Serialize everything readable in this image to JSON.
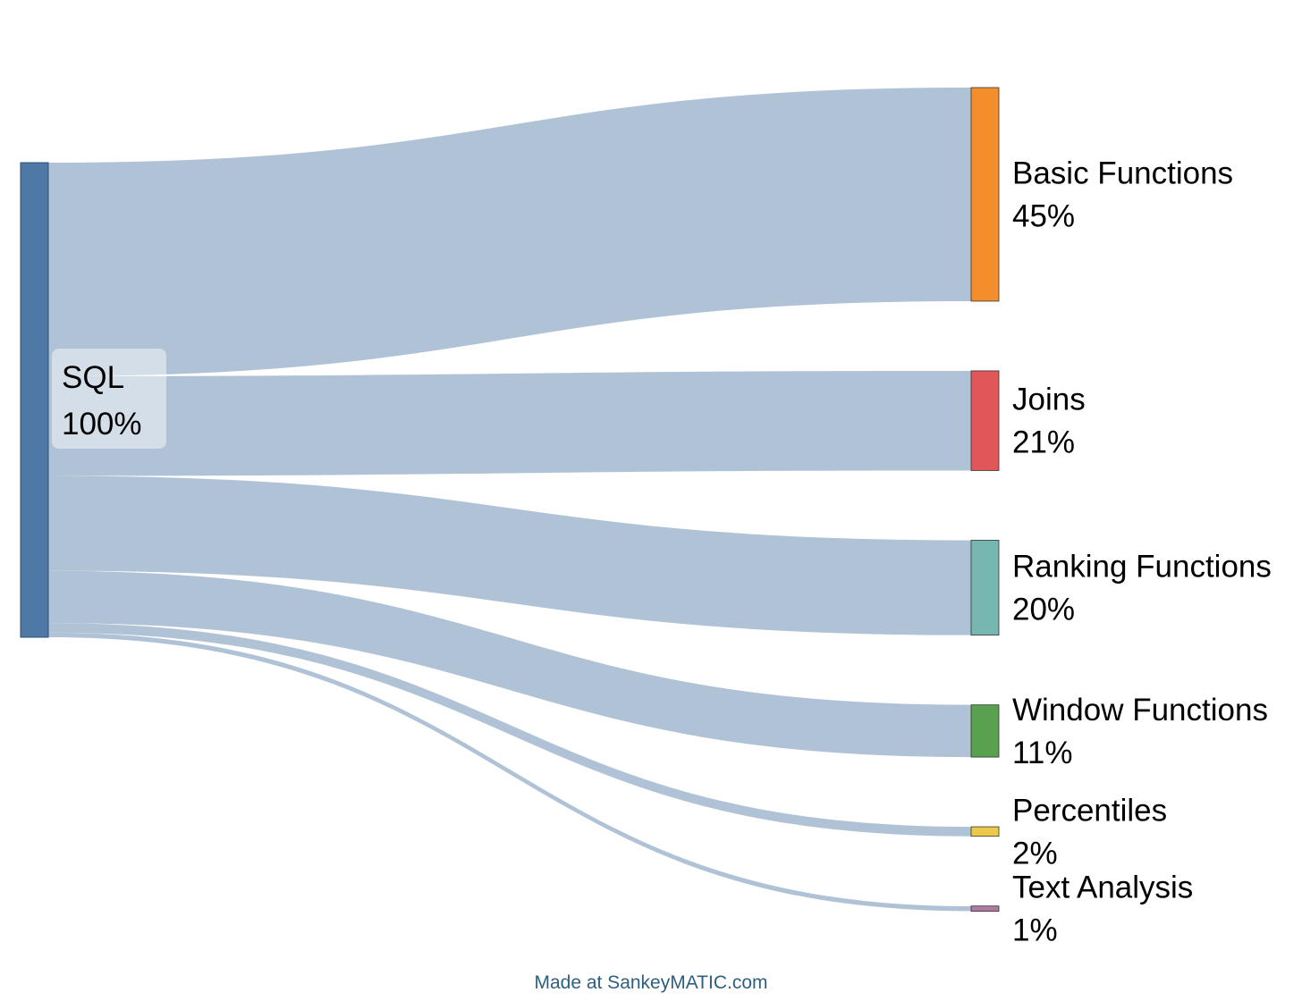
{
  "chart_data": {
    "type": "sankey",
    "source": {
      "name": "SQL",
      "percent": "100%",
      "color": "#4e79a7"
    },
    "targets": [
      {
        "name": "Basic Functions",
        "percent": "45%",
        "value": 45,
        "color": "#f28e2c"
      },
      {
        "name": "Joins",
        "percent": "21%",
        "value": 21,
        "color": "#e15759"
      },
      {
        "name": "Ranking Functions",
        "percent": "20%",
        "value": 20,
        "color": "#76b7b2"
      },
      {
        "name": "Window Functions",
        "percent": "11%",
        "value": 11,
        "color": "#59a14f"
      },
      {
        "name": "Percentiles",
        "percent": "2%",
        "value": 2,
        "color": "#edc949"
      },
      {
        "name": "Text Analysis",
        "percent": "1%",
        "value": 1,
        "color": "#af7aa1"
      }
    ],
    "flow_color": "#b0c3d6"
  },
  "footer": {
    "credit": "Made at SankeyMATIC.com"
  }
}
